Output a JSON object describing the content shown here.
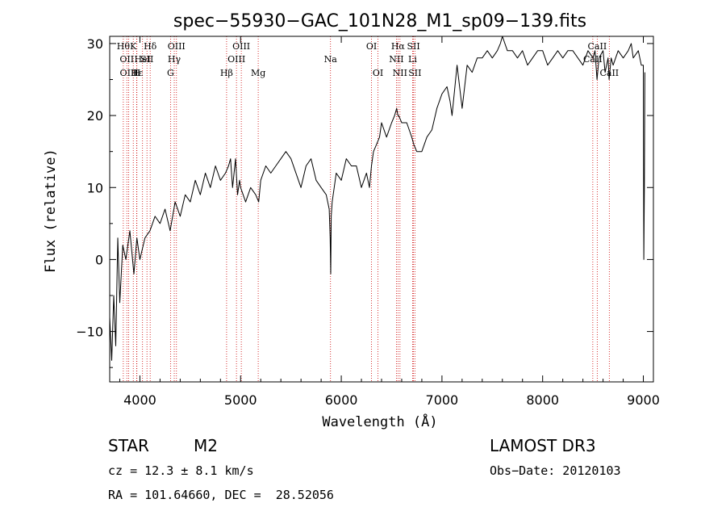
{
  "chart_data": {
    "type": "line",
    "title": "spec−55930−GAC_101N28_M1_sp09−139.fits",
    "xlabel": "Wavelength (Å)",
    "ylabel": "Flux (relative)",
    "xlim": [
      3700,
      9100
    ],
    "ylim": [
      -17,
      31
    ],
    "xticks": [
      4000,
      5000,
      6000,
      7000,
      8000,
      9000
    ],
    "yticks": [
      -10,
      0,
      10,
      20,
      30
    ],
    "series": [
      {
        "name": "flux",
        "x": [
          3700,
          3720,
          3740,
          3760,
          3780,
          3800,
          3830,
          3860,
          3900,
          3940,
          3970,
          4000,
          4050,
          4100,
          4150,
          4200,
          4250,
          4300,
          4350,
          4400,
          4450,
          4500,
          4550,
          4600,
          4650,
          4700,
          4750,
          4800,
          4850,
          4880,
          4900,
          4920,
          4950,
          4970,
          4990,
          5000,
          5050,
          5100,
          5150,
          5180,
          5200,
          5250,
          5300,
          5350,
          5400,
          5450,
          5500,
          5550,
          5600,
          5650,
          5700,
          5750,
          5800,
          5850,
          5880,
          5890,
          5895,
          5900,
          5910,
          5930,
          5950,
          6000,
          6050,
          6100,
          6150,
          6200,
          6250,
          6280,
          6300,
          6320,
          6350,
          6380,
          6400,
          6450,
          6500,
          6530,
          6550,
          6563,
          6570,
          6600,
          6650,
          6700,
          6720,
          6750,
          6800,
          6850,
          6900,
          6950,
          7000,
          7050,
          7080,
          7100,
          7150,
          7200,
          7250,
          7300,
          7350,
          7400,
          7450,
          7500,
          7550,
          7580,
          7600,
          7650,
          7700,
          7750,
          7800,
          7850,
          7900,
          7950,
          8000,
          8050,
          8100,
          8150,
          8200,
          8250,
          8300,
          8350,
          8400,
          8450,
          8500,
          8520,
          8540,
          8560,
          8600,
          8620,
          8650,
          8660,
          8680,
          8700,
          8750,
          8800,
          8850,
          8880,
          8900,
          8950,
          8980,
          9000,
          9005,
          9010,
          9015
        ],
        "values": [
          -8,
          -14,
          -5,
          -12,
          3,
          -6,
          2,
          0,
          4,
          -2,
          3,
          0,
          3,
          4,
          6,
          5,
          7,
          4,
          8,
          6,
          9,
          8,
          11,
          9,
          12,
          10,
          13,
          11,
          12,
          13,
          14,
          10,
          14,
          9,
          11,
          10,
          8,
          10,
          9,
          8,
          11,
          13,
          12,
          13,
          14,
          15,
          14,
          12,
          10,
          13,
          14,
          11,
          10,
          9,
          7,
          3,
          -2,
          6,
          8,
          10,
          12,
          11,
          14,
          13,
          13,
          10,
          12,
          10,
          13,
          15,
          16,
          17,
          19,
          17,
          19,
          20,
          21,
          20,
          20,
          19,
          19,
          17,
          16,
          15,
          15,
          17,
          18,
          21,
          23,
          24,
          22,
          20,
          27,
          21,
          27,
          26,
          28,
          28,
          29,
          28,
          29,
          30,
          31,
          29,
          29,
          28,
          29,
          27,
          28,
          29,
          29,
          27,
          28,
          29,
          28,
          29,
          29,
          28,
          27,
          29,
          28,
          29,
          25,
          28,
          29,
          26,
          28,
          25,
          28,
          27,
          29,
          28,
          29,
          30,
          28,
          29,
          27,
          27,
          0,
          10,
          26
        ]
      }
    ],
    "spectral_lines": [
      {
        "wavelength": 3835,
        "label": "Hθ",
        "row": 1
      },
      {
        "wavelength": 3870,
        "label": "OII",
        "row": 2
      },
      {
        "wavelength": 3889,
        "label": "OIII",
        "row": 3
      },
      {
        "wavelength": 3934,
        "label": "K",
        "row": 1
      },
      {
        "wavelength": 3968,
        "label": "H",
        "row": 3
      },
      {
        "wavelength": 3970,
        "label": "Hε",
        "row": 3
      },
      {
        "wavelength": 4026,
        "label": "HeI",
        "row": 2
      },
      {
        "wavelength": 4070,
        "label": "SII",
        "row": 2
      },
      {
        "wavelength": 4102,
        "label": "Hδ",
        "row": 1
      },
      {
        "wavelength": 4304,
        "label": "G",
        "row": 3
      },
      {
        "wavelength": 4341,
        "label": "Hγ",
        "row": 2
      },
      {
        "wavelength": 4363,
        "label": "OIII",
        "row": 1
      },
      {
        "wavelength": 4861,
        "label": "Hβ",
        "row": 3
      },
      {
        "wavelength": 4959,
        "label": "OIII",
        "row": 2
      },
      {
        "wavelength": 5007,
        "label": "OIII",
        "row": 1
      },
      {
        "wavelength": 5175,
        "label": "Mg",
        "row": 3
      },
      {
        "wavelength": 5893,
        "label": "Na",
        "row": 2
      },
      {
        "wavelength": 6300,
        "label": "OI",
        "row": 1
      },
      {
        "wavelength": 6364,
        "label": "OI",
        "row": 3
      },
      {
        "wavelength": 6548,
        "label": "NII",
        "row": 2
      },
      {
        "wavelength": 6563,
        "label": "Hα",
        "row": 1
      },
      {
        "wavelength": 6583,
        "label": "NII",
        "row": 3
      },
      {
        "wavelength": 6708,
        "label": "Li",
        "row": 2
      },
      {
        "wavelength": 6717,
        "label": "SII",
        "row": 1
      },
      {
        "wavelength": 6731,
        "label": "SII",
        "row": 3
      },
      {
        "wavelength": 8498,
        "label": "CaII",
        "row": 2
      },
      {
        "wavelength": 8542,
        "label": "CaII",
        "row": 1
      },
      {
        "wavelength": 8662,
        "label": "CaII",
        "row": 3
      }
    ]
  },
  "info": {
    "object_class": "STAR",
    "subclass": "M2",
    "survey": "LAMOST DR3",
    "redshift": "cz = 12.3 ± 8.1 km/s",
    "obs_date": "Obs−Date: 20120103",
    "coords": "RA = 101.64660, DEC =  28.52056"
  },
  "colors": {
    "line": "#000000",
    "marker": "#cc0000",
    "axis": "#000000"
  }
}
